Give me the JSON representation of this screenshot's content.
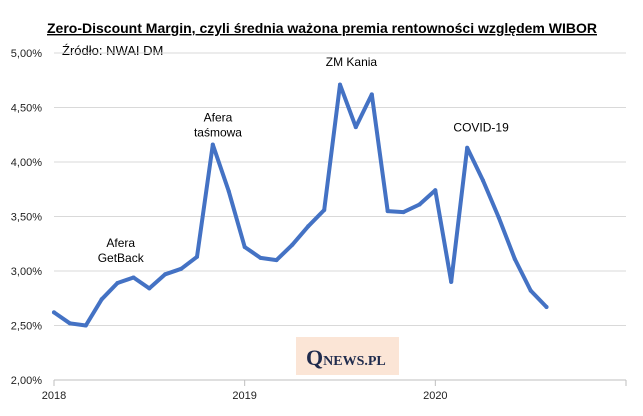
{
  "chart_data": {
    "type": "line",
    "title": "Zero-Discount Margin, czyli średnia ważona premia rentowności względem WIBOR",
    "source": "Źródło: NWAI DM",
    "ylim": [
      2.0,
      5.0
    ],
    "yticks": [
      2.0,
      2.5,
      3.0,
      3.5,
      4.0,
      4.5,
      5.0
    ],
    "ytick_labels": [
      "2,00%",
      "2,50%",
      "3,00%",
      "3,50%",
      "4,00%",
      "4,50%",
      "5,00%"
    ],
    "xlim": [
      2018.0,
      2021.0
    ],
    "xticks": [
      2018.0,
      2019.0,
      2020.0
    ],
    "xtick_labels": [
      "2018",
      "2019",
      "2020"
    ],
    "grid": "horizontal",
    "color": "#4472c4",
    "series": [
      {
        "x": [
          2018.0,
          2018.083,
          2018.167,
          2018.25,
          2018.333,
          2018.417,
          2018.5,
          2018.583,
          2018.667,
          2018.75,
          2018.833,
          2018.917,
          2019.0,
          2019.083,
          2019.167,
          2019.25,
          2019.333,
          2019.417,
          2019.5,
          2019.583,
          2019.667,
          2019.75,
          2019.833,
          2019.917,
          2020.0,
          2020.083,
          2020.167,
          2020.25,
          2020.333,
          2020.417,
          2020.5,
          2020.583
        ],
        "y": [
          2.62,
          2.52,
          2.5,
          2.74,
          2.89,
          2.94,
          2.84,
          2.97,
          3.02,
          3.13,
          4.16,
          3.73,
          3.22,
          3.12,
          3.1,
          3.24,
          3.41,
          3.56,
          4.71,
          4.32,
          4.62,
          3.55,
          3.54,
          3.61,
          3.74,
          2.9,
          4.13,
          3.83,
          3.49,
          3.11,
          2.82,
          2.67
        ]
      }
    ],
    "annotations": [
      {
        "lines": [
          "Afera",
          "GetBack"
        ],
        "x": 2018.35,
        "y": 3.22
      },
      {
        "lines": [
          "Afera",
          "taśmowa"
        ],
        "x": 2018.86,
        "y": 4.37
      },
      {
        "lines": [
          "ZM Kania"
        ],
        "x": 2019.56,
        "y": 4.88
      },
      {
        "lines": [
          "COVID-19"
        ],
        "x": 2020.24,
        "y": 4.28
      }
    ]
  },
  "logo": {
    "q": "Q",
    "rest": "NEWS.PL"
  }
}
